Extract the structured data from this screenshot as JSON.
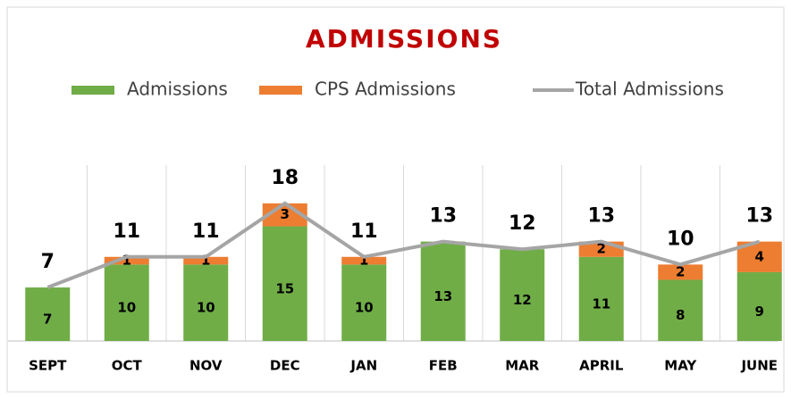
{
  "chart_data": {
    "type": "bar-line",
    "title": "ADMISSIONS",
    "categories": [
      "SEPT",
      "OCT",
      "NOV",
      "DEC",
      "JAN",
      "FEB",
      "MAR",
      "APRIL",
      "MAY",
      "JUNE"
    ],
    "series": [
      {
        "name": "Admissions",
        "color": "#70ad47",
        "type": "bar",
        "values": [
          7,
          10,
          10,
          15,
          10,
          13,
          12,
          11,
          8,
          9
        ]
      },
      {
        "name": "CPS Admissions",
        "color": "#ed7d31",
        "type": "bar",
        "values": [
          null,
          1,
          1,
          3,
          1,
          null,
          null,
          2,
          2,
          4
        ]
      },
      {
        "name": "Total Admissions",
        "color": "#a5a5a5",
        "type": "line",
        "values": [
          7,
          11,
          11,
          18,
          11,
          13,
          12,
          13,
          10,
          13
        ]
      }
    ],
    "ylim": [
      0,
      23
    ],
    "legend": "top"
  }
}
